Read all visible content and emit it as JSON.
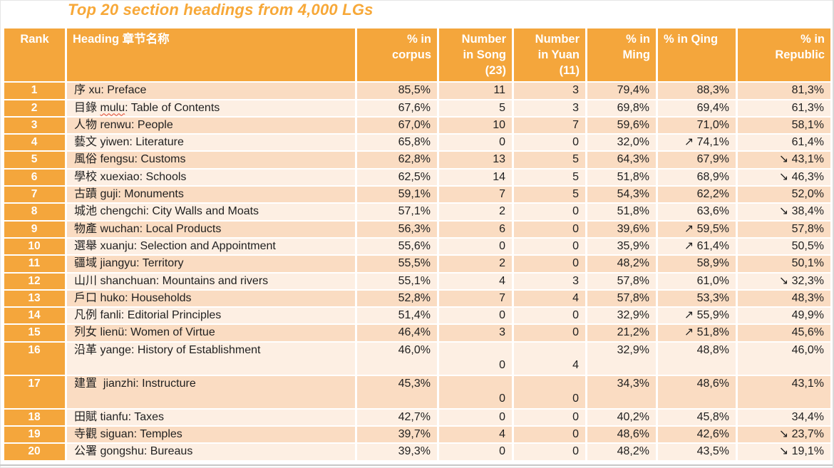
{
  "slide_title": "Top 20 section headings from 4,000 LGs",
  "colors": {
    "accent_orange": "#f4a63c",
    "title_orange": "#f7a838",
    "row_stripe_dark": "#fadcc2",
    "row_stripe_light": "#fdefe3",
    "header_text": "#ffffff",
    "body_text": "#1f1f1f",
    "spellcheck_underline": "#e0442c"
  },
  "icons": {
    "increase_arrow": "↗",
    "decrease_arrow": "↘"
  },
  "chart_data": {
    "type": "table",
    "title": "Top 20 section headings from 4,000 LGs",
    "columns": [
      {
        "id": "rank",
        "label": [
          "Rank"
        ],
        "align": "center"
      },
      {
        "id": "heading",
        "label": [
          "Heading 章节名称"
        ],
        "align": "left"
      },
      {
        "id": "corpus",
        "label": [
          "% in",
          "corpus"
        ],
        "align": "right"
      },
      {
        "id": "song",
        "label": [
          "Number",
          "in Song",
          "(23)"
        ],
        "align": "right"
      },
      {
        "id": "yuan",
        "label": [
          "Number",
          "in Yuan",
          "(11)"
        ],
        "align": "right"
      },
      {
        "id": "ming",
        "label": [
          "% in",
          "Ming"
        ],
        "align": "right"
      },
      {
        "id": "qing",
        "label": [
          "%  in Qing"
        ],
        "align": "left"
      },
      {
        "id": "republic",
        "label": [
          "% in",
          "Republic"
        ],
        "align": "right"
      }
    ],
    "rows": [
      {
        "rank": "1",
        "heading": "序 xu: Preface",
        "corpus": "85,5%",
        "song": "11",
        "yuan": "3",
        "ming": "79,4%",
        "qing": "88,3%",
        "republic": "81,3%"
      },
      {
        "rank": "2",
        "heading": "目錄 mulu: Table of Contents",
        "misspelled": "mulu",
        "corpus": "67,6%",
        "song": "5",
        "yuan": "3",
        "ming": "69,8%",
        "qing": "69,4%",
        "republic": "61,3%"
      },
      {
        "rank": "3",
        "heading": "人物 renwu: People",
        "corpus": "67,0%",
        "song": "10",
        "yuan": "7",
        "ming": "59,6%",
        "qing": "71,0%",
        "republic": "58,1%"
      },
      {
        "rank": "4",
        "heading": "藝文 yiwen: Literature",
        "corpus": "65,8%",
        "song": "0",
        "yuan": "0",
        "ming": "32,0%",
        "qing": "↗ 74,1%",
        "republic": "61,4%"
      },
      {
        "rank": "5",
        "heading": "風俗 fengsu: Customs",
        "corpus": "62,8%",
        "song": "13",
        "yuan": "5",
        "ming": "64,3%",
        "qing": "67,9%",
        "republic": "↘ 43,1%"
      },
      {
        "rank": "6",
        "heading": "學校 xuexiao: Schools",
        "corpus": "62,5%",
        "song": "14",
        "yuan": "5",
        "ming": "51,8%",
        "qing": "68,9%",
        "republic": "↘ 46,3%"
      },
      {
        "rank": "7",
        "heading": "古蹟 guji: Monuments",
        "corpus": "59,1%",
        "song": "7",
        "yuan": "5",
        "ming": "54,3%",
        "qing": "62,2%",
        "republic": "52,0%"
      },
      {
        "rank": "8",
        "heading": "城池 chengchi: City Walls and Moats",
        "corpus": "57,1%",
        "song": "2",
        "yuan": "0",
        "ming": "51,8%",
        "qing": "63,6%",
        "republic": "↘ 38,4%"
      },
      {
        "rank": "9",
        "heading": "物產 wuchan: Local Products",
        "corpus": "56,3%",
        "song": "6",
        "yuan": "0",
        "ming": "39,6%",
        "qing": "↗ 59,5%",
        "republic": "57,8%"
      },
      {
        "rank": "10",
        "heading": "選舉 xuanju: Selection and Appointment",
        "corpus": "55,6%",
        "song": "0",
        "yuan": "0",
        "ming": "35,9%",
        "qing": "↗ 61,4%",
        "republic": "50,5%"
      },
      {
        "rank": "11",
        "heading": "疆域 jiangyu: Territory",
        "corpus": "55,5%",
        "song": "2",
        "yuan": "0",
        "ming": "48,2%",
        "qing": "58,9%",
        "republic": "50,1%"
      },
      {
        "rank": "12",
        "heading": "山川 shanchuan: Mountains and rivers",
        "corpus": "55,1%",
        "song": "4",
        "yuan": "3",
        "ming": "57,8%",
        "qing": "61,0%",
        "republic": "↘ 32,3%"
      },
      {
        "rank": "13",
        "heading": "戶口 huko: Households",
        "corpus": "52,8%",
        "song": "7",
        "yuan": "4",
        "ming": "57,8%",
        "qing": "53,3%",
        "republic": "48,3%"
      },
      {
        "rank": "14",
        "heading": "凡例 fanli: Editorial Principles",
        "corpus": "51,4%",
        "song": "0",
        "yuan": "0",
        "ming": "32,9%",
        "qing": "↗ 55,9%",
        "republic": "49,9%"
      },
      {
        "rank": "15",
        "heading": "列女 lienü: Women of Virtue",
        "corpus": "46,4%",
        "song": "3",
        "yuan": "0",
        "ming": "21,2%",
        "qing": "↗ 51,8%",
        "republic": "45,6%"
      },
      {
        "rank": "16",
        "heading": "沿革 yange: History of Establishment",
        "tall": true,
        "corpus": "46,0%",
        "song": "0",
        "yuan": "4",
        "ming": "32,9%",
        "qing": "48,8%",
        "republic": "46,0%"
      },
      {
        "rank": "17",
        "heading": "建置  jianzhi: Instructure",
        "tall": true,
        "corpus": "45,3%",
        "song": "0",
        "yuan": "0",
        "ming": "34,3%",
        "qing": "48,6%",
        "republic": "43,1%"
      },
      {
        "rank": "18",
        "heading": "田賦 tianfu: Taxes",
        "corpus": "42,7%",
        "song": "0",
        "yuan": "0",
        "ming": "40,2%",
        "qing": "45,8%",
        "republic": "34,4%"
      },
      {
        "rank": "19",
        "heading": "寺觀 siguan: Temples",
        "corpus": "39,7%",
        "song": "4",
        "yuan": "0",
        "ming": "48,6%",
        "qing": "42,6%",
        "republic": "↘ 23,7%"
      },
      {
        "rank": "20",
        "heading": "公署 gongshu: Bureaus",
        "corpus": "39,3%",
        "song": "0",
        "yuan": "0",
        "ming": "48,2%",
        "qing": "43,5%",
        "republic": "↘ 19,1%"
      }
    ]
  }
}
